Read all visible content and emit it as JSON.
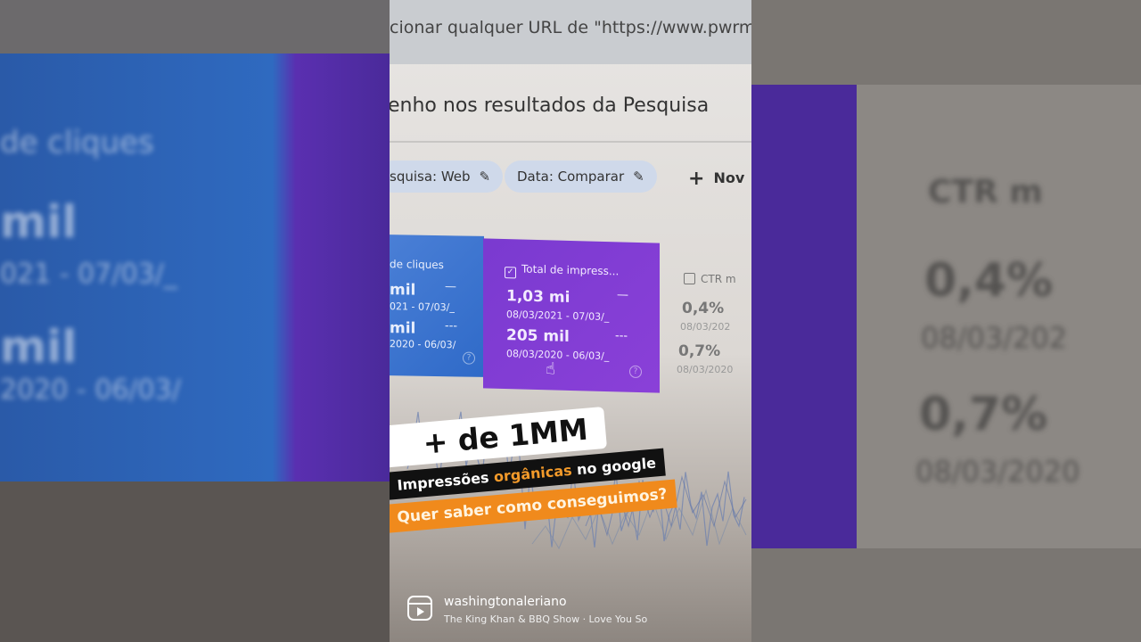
{
  "browser": {
    "url_text": "cionar qualquer URL de \"https://www.pwrmark"
  },
  "page": {
    "heading": "enho nos resultados da Pesquisa"
  },
  "filters": {
    "chips": [
      {
        "label": "squisa: Web",
        "icon": "pencil-icon"
      },
      {
        "label": "Data: Comparar",
        "icon": "pencil-icon"
      }
    ],
    "new_label": "Nov",
    "new_icon": "plus-icon"
  },
  "metrics": {
    "clicks": {
      "label": "de cliques",
      "current_value": "mil",
      "current_range": "021 - 07/03/_",
      "previous_value": "mil",
      "previous_range": "2020 - 06/03/",
      "color": "#2f6ac8"
    },
    "impressions": {
      "label": "Total de impress...",
      "checked": true,
      "current_value": "1,03 mi",
      "current_range": "08/03/2021 - 07/03/_",
      "previous_value": "205 mil",
      "previous_range": "08/03/2020 - 06/03/_",
      "color": "#7a3ad0"
    },
    "ctr": {
      "label": "CTR m",
      "checked": false,
      "current_value": "0,4%",
      "current_range": "08/03/202",
      "previous_value": "0,7%",
      "previous_range": "08/03/2020"
    }
  },
  "overlay": {
    "headline": "+ de 1MM",
    "line1_pre": "Impressões ",
    "line1_highlight": "orgânicas",
    "line1_post": " no google",
    "line2": "Quer saber como conseguimos?"
  },
  "reel": {
    "username": "washingtonaleriano",
    "music": "The King Khan & BBQ Show · Love You So"
  }
}
